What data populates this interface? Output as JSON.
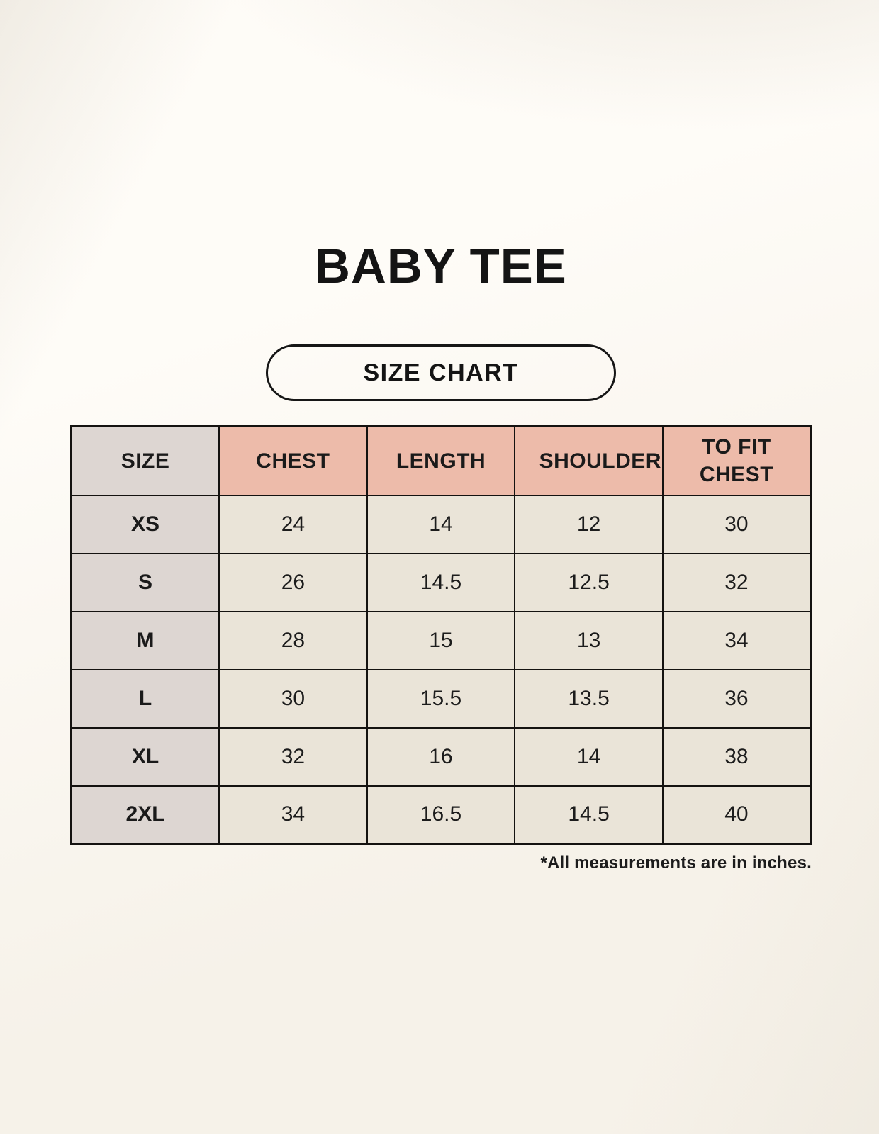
{
  "page": {
    "title": "BABY TEE",
    "size_chart_label": "SIZE CHART",
    "footnote": "*All measurements are in inches."
  },
  "colors": {
    "background": "#f8f4ec",
    "header_pink": "#edbbaa",
    "size_column_gray": "#ddd6d2",
    "cell_cream": "#eae4d8",
    "border": "#141210",
    "text": "#1a1a1a"
  },
  "chart_data": {
    "type": "table",
    "title": "BABY TEE",
    "subtitle": "SIZE CHART",
    "columns": [
      "SIZE",
      "CHEST",
      "LENGTH",
      "SHOULDER",
      "TO FIT CHEST"
    ],
    "rows": [
      [
        "XS",
        "24",
        "14",
        "12",
        "30"
      ],
      [
        "S",
        "26",
        "14.5",
        "12.5",
        "32"
      ],
      [
        "M",
        "28",
        "15",
        "13",
        "34"
      ],
      [
        "L",
        "30",
        "15.5",
        "13.5",
        "36"
      ],
      [
        "XL",
        "32",
        "16",
        "14",
        "38"
      ],
      [
        "2XL",
        "34",
        "16.5",
        "14.5",
        "40"
      ]
    ],
    "footnote": "*All measurements are in inches."
  }
}
